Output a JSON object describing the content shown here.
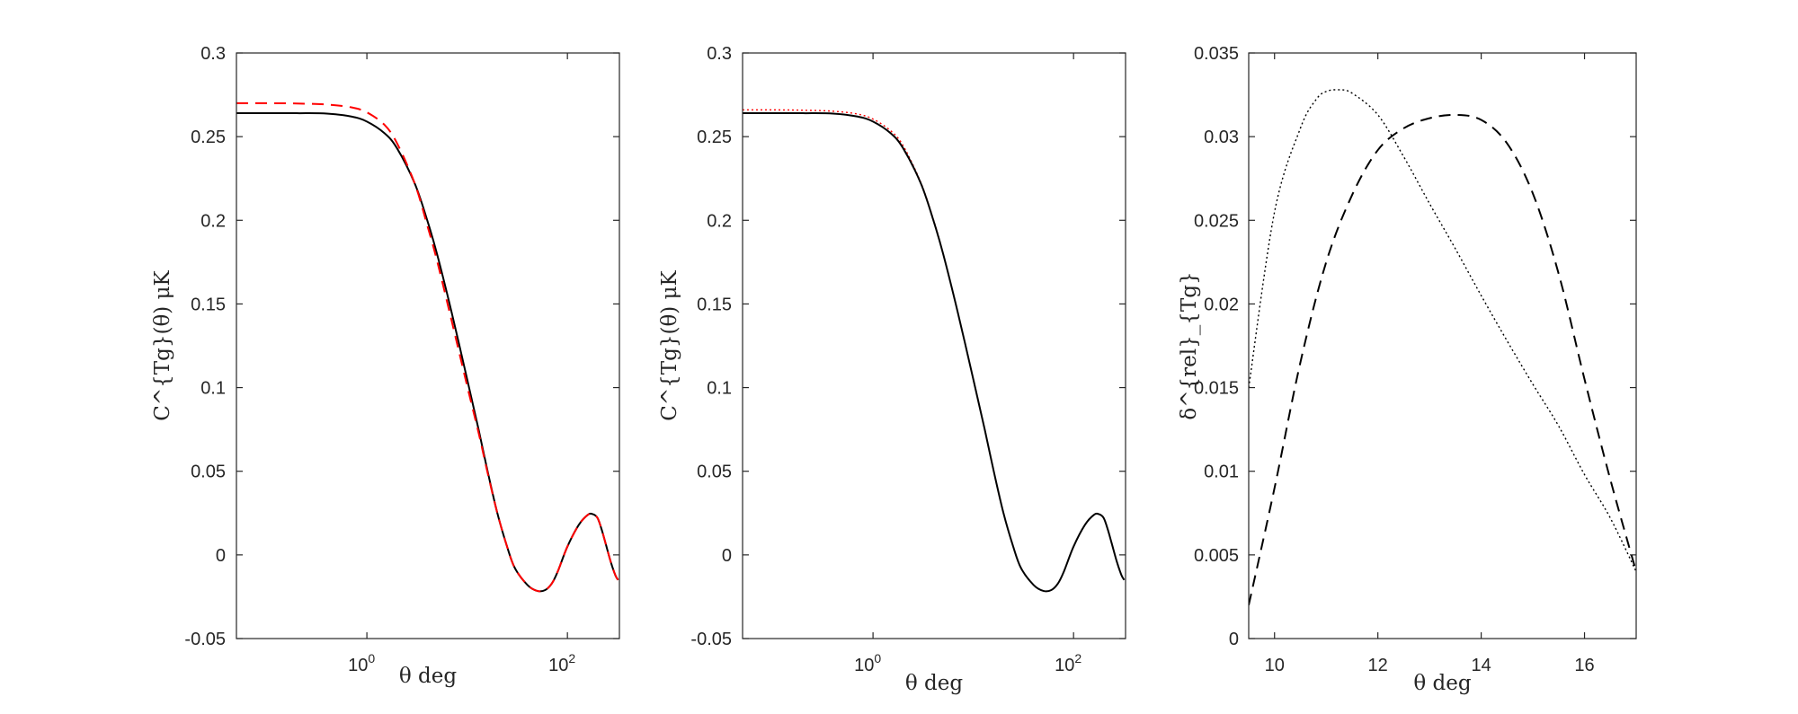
{
  "figure": {
    "panels": 3
  },
  "chart_data": [
    {
      "type": "line",
      "title": "",
      "xlabel": "θ deg",
      "ylabel": "C^{Tg}(θ) μK",
      "xscale": "log",
      "xlim": [
        0.05,
        330
      ],
      "ylim": [
        -0.05,
        0.3
      ],
      "xticks": [
        1,
        100
      ],
      "xticklabels": [
        "10",
        "10"
      ],
      "xtickexponents": [
        "0",
        "2"
      ],
      "yticks": [
        -0.05,
        0,
        0.05,
        0.1,
        0.15,
        0.2,
        0.25,
        0.3
      ],
      "yticklabels": [
        "-0.05",
        "0",
        "0.05",
        "0.1",
        "0.15",
        "0.2",
        "0.25",
        "0.3"
      ],
      "grid": false,
      "series": [
        {
          "style": "solid",
          "color": "#000000",
          "x": [
            0.05,
            0.1,
            0.2,
            0.4,
            0.7,
            1,
            1.5,
            2,
            3,
            4,
            5,
            7,
            10,
            13,
            16,
            20,
            25,
            30,
            40,
            50,
            60,
            70,
            80,
            100,
            130,
            160,
            180,
            200,
            220,
            240,
            270,
            300,
            320
          ],
          "y": [
            0.264,
            0.264,
            0.264,
            0.2638,
            0.262,
            0.259,
            0.252,
            0.243,
            0.222,
            0.2,
            0.18,
            0.145,
            0.105,
            0.075,
            0.05,
            0.025,
            0.005,
            -0.008,
            -0.018,
            -0.0215,
            -0.021,
            -0.017,
            -0.01,
            0.005,
            0.018,
            0.024,
            0.0243,
            0.022,
            0.015,
            0.007,
            -0.004,
            -0.012,
            -0.015
          ]
        },
        {
          "style": "dashed",
          "color": "#ff0000",
          "x": [
            0.05,
            0.1,
            0.2,
            0.4,
            0.7,
            1,
            1.5,
            2,
            3,
            4,
            5,
            7,
            10,
            13,
            16,
            20,
            25,
            30,
            40,
            50,
            60,
            70,
            80,
            100,
            130,
            160,
            180,
            200,
            220,
            240,
            270,
            300,
            320
          ],
          "y": [
            0.27,
            0.27,
            0.2698,
            0.2692,
            0.2675,
            0.2645,
            0.257,
            0.246,
            0.222,
            0.197,
            0.176,
            0.14,
            0.101,
            0.073,
            0.049,
            0.025,
            0.005,
            -0.008,
            -0.018,
            -0.0215,
            -0.021,
            -0.017,
            -0.01,
            0.005,
            0.018,
            0.024,
            0.0243,
            0.022,
            0.015,
            0.007,
            -0.004,
            -0.012,
            -0.015
          ]
        }
      ]
    },
    {
      "type": "line",
      "title": "",
      "xlabel": "θ deg",
      "ylabel": "C^{Tg}(θ) μK",
      "xscale": "log",
      "xlim": [
        0.05,
        330
      ],
      "ylim": [
        -0.05,
        0.3
      ],
      "xticks": [
        1,
        100
      ],
      "xticklabels": [
        "10",
        "10"
      ],
      "xtickexponents": [
        "0",
        "2"
      ],
      "yticks": [
        -0.05,
        0,
        0.05,
        0.1,
        0.15,
        0.2,
        0.25,
        0.3
      ],
      "yticklabels": [
        "-0.05",
        "0",
        "0.05",
        "0.1",
        "0.15",
        "0.2",
        "0.25",
        "0.3"
      ],
      "grid": false,
      "series": [
        {
          "style": "dotted",
          "color": "#ff0000",
          "x": [
            0.05,
            0.1,
            0.2,
            0.4,
            0.7,
            1,
            1.5,
            2,
            3,
            4,
            5,
            7,
            10,
            13,
            16,
            20,
            25,
            30,
            40,
            50,
            60,
            70,
            80,
            100,
            130,
            160,
            180,
            200,
            220,
            240,
            270,
            300,
            320
          ],
          "y": [
            0.266,
            0.266,
            0.2658,
            0.2652,
            0.2635,
            0.2605,
            0.2535,
            0.2445,
            0.2225,
            0.2005,
            0.18,
            0.145,
            0.105,
            0.075,
            0.05,
            0.025,
            0.005,
            -0.008,
            -0.018,
            -0.0215,
            -0.021,
            -0.017,
            -0.01,
            0.005,
            0.018,
            0.024,
            0.0243,
            0.022,
            0.015,
            0.007,
            -0.004,
            -0.012,
            -0.015
          ]
        },
        {
          "style": "solid",
          "color": "#000000",
          "x": [
            0.05,
            0.1,
            0.2,
            0.4,
            0.7,
            1,
            1.5,
            2,
            3,
            4,
            5,
            7,
            10,
            13,
            16,
            20,
            25,
            30,
            40,
            50,
            60,
            70,
            80,
            100,
            130,
            160,
            180,
            200,
            220,
            240,
            270,
            300,
            320
          ],
          "y": [
            0.264,
            0.264,
            0.264,
            0.2638,
            0.262,
            0.259,
            0.252,
            0.243,
            0.222,
            0.2,
            0.18,
            0.145,
            0.105,
            0.075,
            0.05,
            0.025,
            0.005,
            -0.008,
            -0.018,
            -0.0215,
            -0.021,
            -0.017,
            -0.01,
            0.005,
            0.018,
            0.024,
            0.0243,
            0.022,
            0.015,
            0.007,
            -0.004,
            -0.012,
            -0.015
          ]
        }
      ]
    },
    {
      "type": "line",
      "title": "",
      "xlabel": "θ deg",
      "ylabel": "δ^{rel}_{Tg}",
      "xscale": "linear",
      "xlim": [
        9.5,
        17
      ],
      "ylim": [
        0,
        0.035
      ],
      "xticks": [
        10,
        12,
        14,
        16
      ],
      "xticklabels": [
        "10",
        "12",
        "14",
        "16"
      ],
      "yticks": [
        0,
        0.005,
        0.01,
        0.015,
        0.02,
        0.025,
        0.03,
        0.035
      ],
      "yticklabels": [
        "0",
        "0.005",
        "0.01",
        "0.015",
        "0.02",
        "0.025",
        "0.03",
        "0.035"
      ],
      "grid": false,
      "series": [
        {
          "style": "dashed",
          "color": "#000000",
          "x": [
            9.5,
            10,
            10.5,
            11,
            11.5,
            12,
            12.5,
            13,
            13.5,
            14,
            14.5,
            15,
            15.5,
            16,
            16.5,
            17
          ],
          "y": [
            0.002,
            0.009,
            0.0165,
            0.0225,
            0.0265,
            0.0292,
            0.0305,
            0.0311,
            0.0313,
            0.031,
            0.0296,
            0.0266,
            0.0218,
            0.0155,
            0.0095,
            0.004
          ]
        },
        {
          "style": "dotted",
          "color": "#000000",
          "x": [
            9.5,
            10,
            10.5,
            10.8,
            11,
            11.25,
            11.5,
            12,
            12.5,
            13,
            13.5,
            14,
            14.5,
            15,
            15.5,
            16,
            16.5,
            17
          ],
          "y": [
            0.015,
            0.0255,
            0.0305,
            0.0322,
            0.0327,
            0.0328,
            0.0326,
            0.0313,
            0.0288,
            0.026,
            0.0233,
            0.0205,
            0.0178,
            0.0152,
            0.0127,
            0.0098,
            0.0072,
            0.004
          ]
        }
      ]
    }
  ]
}
